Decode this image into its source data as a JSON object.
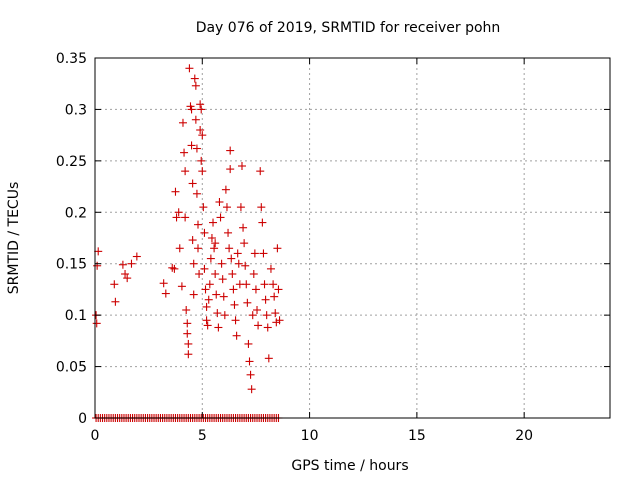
{
  "chart_data": {
    "type": "scatter",
    "title": "Day 076 of 2019, SRMTID for receiver pohn",
    "xlabel": "GPS time / hours",
    "ylabel": "SRMTID / TECUs",
    "xlim": [
      0,
      24
    ],
    "ylim": [
      0,
      0.35
    ],
    "xticks": [
      0,
      5,
      10,
      15,
      20
    ],
    "yticks": [
      0,
      0.05,
      0.1,
      0.15,
      0.2,
      0.25,
      0.3,
      0.35
    ],
    "xtick_labels": [
      "0",
      "5",
      "10",
      "15",
      "20"
    ],
    "ytick_labels": [
      "0",
      "0.05",
      "0.1",
      "0.15",
      "0.2",
      "0.25",
      "0.3",
      "0.35"
    ],
    "grid": true,
    "marker": "+",
    "series": [
      {
        "name": "SRMTID",
        "color": "#cc0000",
        "points": [
          [
            0.05,
            0.1
          ],
          [
            0.08,
            0.092
          ],
          [
            0.1,
            0.148
          ],
          [
            0.15,
            0.162
          ],
          [
            0.9,
            0.13
          ],
          [
            0.95,
            0.113
          ],
          [
            1.3,
            0.149
          ],
          [
            1.4,
            0.14
          ],
          [
            1.5,
            0.136
          ],
          [
            1.7,
            0.15
          ],
          [
            1.95,
            0.157
          ],
          [
            3.2,
            0.131
          ],
          [
            3.3,
            0.121
          ],
          [
            3.6,
            0.146
          ],
          [
            3.7,
            0.145
          ],
          [
            3.75,
            0.22
          ],
          [
            3.8,
            0.195
          ],
          [
            3.9,
            0.2
          ],
          [
            3.95,
            0.165
          ],
          [
            4.05,
            0.128
          ],
          [
            4.1,
            0.287
          ],
          [
            4.15,
            0.258
          ],
          [
            4.2,
            0.24
          ],
          [
            4.2,
            0.195
          ],
          [
            4.25,
            0.105
          ],
          [
            4.3,
            0.092
          ],
          [
            4.3,
            0.082
          ],
          [
            4.35,
            0.072
          ],
          [
            4.35,
            0.062
          ],
          [
            4.4,
            0.34
          ],
          [
            4.45,
            0.303
          ],
          [
            4.5,
            0.3
          ],
          [
            4.5,
            0.265
          ],
          [
            4.55,
            0.228
          ],
          [
            4.55,
            0.173
          ],
          [
            4.6,
            0.15
          ],
          [
            4.6,
            0.12
          ],
          [
            4.65,
            0.33
          ],
          [
            4.7,
            0.323
          ],
          [
            4.7,
            0.29
          ],
          [
            4.75,
            0.262
          ],
          [
            4.75,
            0.218
          ],
          [
            4.8,
            0.188
          ],
          [
            4.8,
            0.165
          ],
          [
            4.85,
            0.14
          ],
          [
            4.9,
            0.305
          ],
          [
            4.9,
            0.28
          ],
          [
            4.95,
            0.3
          ],
          [
            4.95,
            0.25
          ],
          [
            5.0,
            0.275
          ],
          [
            5.0,
            0.24
          ],
          [
            5.05,
            0.205
          ],
          [
            5.1,
            0.18
          ],
          [
            5.1,
            0.145
          ],
          [
            5.15,
            0.125
          ],
          [
            5.2,
            0.108
          ],
          [
            5.2,
            0.095
          ],
          [
            5.25,
            0.09
          ],
          [
            5.3,
            0.115
          ],
          [
            5.35,
            0.13
          ],
          [
            5.4,
            0.155
          ],
          [
            5.45,
            0.175
          ],
          [
            5.5,
            0.19
          ],
          [
            5.55,
            0.165
          ],
          [
            5.6,
            0.17
          ],
          [
            5.6,
            0.14
          ],
          [
            5.65,
            0.12
          ],
          [
            5.7,
            0.102
          ],
          [
            5.75,
            0.088
          ],
          [
            5.8,
            0.21
          ],
          [
            5.85,
            0.195
          ],
          [
            5.9,
            0.15
          ],
          [
            5.95,
            0.135
          ],
          [
            6.0,
            0.118
          ],
          [
            6.05,
            0.1
          ],
          [
            6.1,
            0.222
          ],
          [
            6.15,
            0.205
          ],
          [
            6.2,
            0.18
          ],
          [
            6.25,
            0.165
          ],
          [
            6.3,
            0.26
          ],
          [
            6.3,
            0.242
          ],
          [
            6.35,
            0.155
          ],
          [
            6.4,
            0.14
          ],
          [
            6.45,
            0.125
          ],
          [
            6.5,
            0.11
          ],
          [
            6.55,
            0.095
          ],
          [
            6.6,
            0.08
          ],
          [
            6.65,
            0.16
          ],
          [
            6.7,
            0.15
          ],
          [
            6.75,
            0.13
          ],
          [
            6.8,
            0.205
          ],
          [
            6.85,
            0.245
          ],
          [
            6.9,
            0.185
          ],
          [
            6.95,
            0.17
          ],
          [
            7.0,
            0.148
          ],
          [
            7.05,
            0.13
          ],
          [
            7.1,
            0.112
          ],
          [
            7.15,
            0.072
          ],
          [
            7.2,
            0.055
          ],
          [
            7.25,
            0.042
          ],
          [
            7.3,
            0.028
          ],
          [
            7.35,
            0.1
          ],
          [
            7.4,
            0.14
          ],
          [
            7.45,
            0.16
          ],
          [
            7.5,
            0.125
          ],
          [
            7.55,
            0.105
          ],
          [
            7.6,
            0.09
          ],
          [
            7.7,
            0.24
          ],
          [
            7.75,
            0.205
          ],
          [
            7.8,
            0.19
          ],
          [
            7.85,
            0.16
          ],
          [
            7.9,
            0.13
          ],
          [
            7.95,
            0.115
          ],
          [
            8.0,
            0.1
          ],
          [
            8.05,
            0.088
          ],
          [
            8.1,
            0.058
          ],
          [
            8.2,
            0.145
          ],
          [
            8.3,
            0.13
          ],
          [
            8.35,
            0.118
          ],
          [
            8.4,
            0.102
          ],
          [
            8.45,
            0.093
          ],
          [
            8.5,
            0.165
          ],
          [
            8.55,
            0.125
          ],
          [
            8.6,
            0.095
          ]
        ]
      }
    ],
    "baseline": {
      "y": 0,
      "x_from": 0.05,
      "x_to": 8.6,
      "step": 0.1
    }
  }
}
